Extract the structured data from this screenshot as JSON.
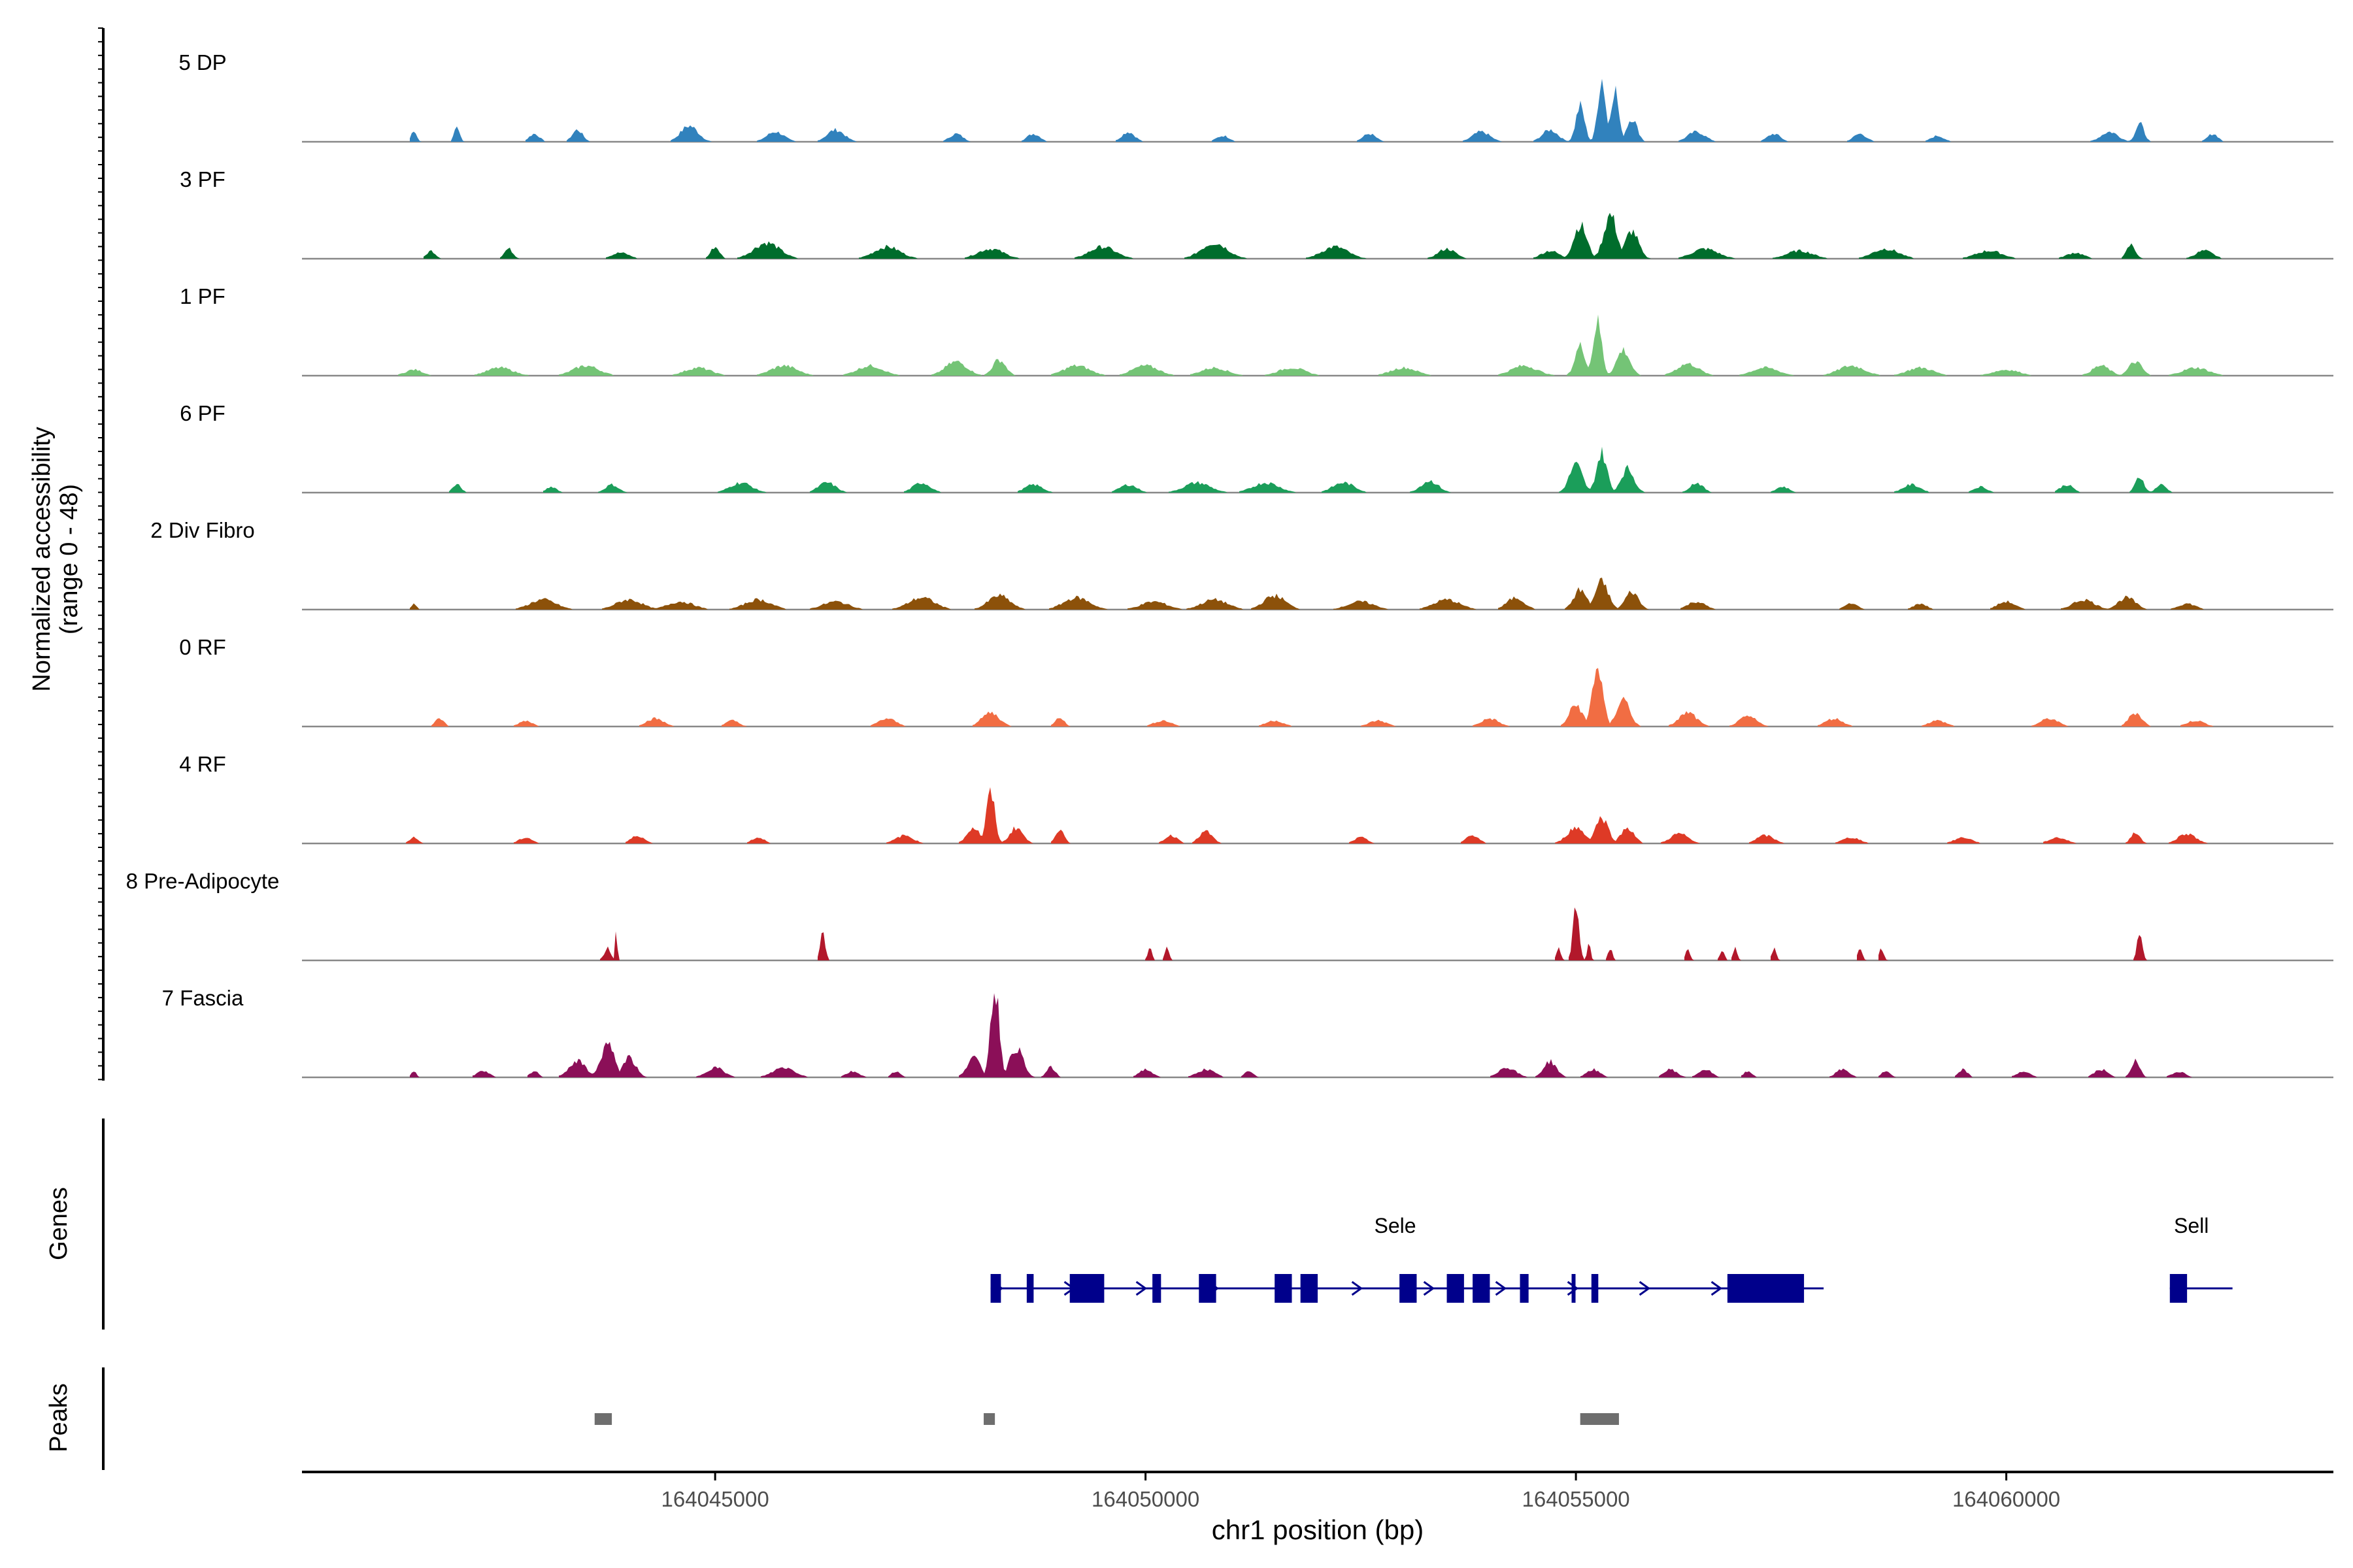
{
  "chart_data": {
    "type": "area",
    "title": "",
    "chromosome": "chr1",
    "xlabel": "chr1 position (bp)",
    "ylabel_line1": "Normalized accessibility",
    "ylabel_line2": "(range 0 - 48)",
    "xlim": [
      164040200,
      164063800
    ],
    "ylim": [
      0,
      48
    ],
    "x_ticks": [
      164045000,
      164050000,
      164055000,
      164060000
    ],
    "x_tick_labels": [
      "164045000",
      "164050000",
      "164055000",
      "164060000"
    ],
    "tracks": [
      {
        "name": "5 DP",
        "color": "#3182bd",
        "peaks": [
          [
            164041500,
            6,
            60
          ],
          [
            164042000,
            8,
            60
          ],
          [
            164042900,
            4,
            120
          ],
          [
            164043400,
            6,
            120
          ],
          [
            164044700,
            8,
            200
          ],
          [
            164045700,
            5,
            200
          ],
          [
            164046400,
            6,
            200
          ],
          [
            164047800,
            4,
            150
          ],
          [
            164048700,
            4,
            150
          ],
          [
            164049800,
            5,
            150
          ],
          [
            164050900,
            3,
            150
          ],
          [
            164052600,
            4,
            150
          ],
          [
            164053900,
            5,
            200
          ],
          [
            164054700,
            6,
            180
          ],
          [
            164055050,
            18,
            100
          ],
          [
            164055300,
            32,
            90
          ],
          [
            164055450,
            27,
            90
          ],
          [
            164055650,
            12,
            120
          ],
          [
            164056400,
            5,
            200
          ],
          [
            164057300,
            4,
            150
          ],
          [
            164058300,
            4,
            150
          ],
          [
            164059200,
            3,
            150
          ],
          [
            164061200,
            5,
            200
          ],
          [
            164061550,
            9,
            100
          ],
          [
            164062400,
            4,
            120
          ]
        ]
      },
      {
        "name": "3 PF",
        "color": "#006d2c",
        "peaks": [
          [
            164041700,
            4,
            100
          ],
          [
            164042600,
            5,
            100
          ],
          [
            164043900,
            3,
            200
          ],
          [
            164045000,
            6,
            100
          ],
          [
            164045600,
            8,
            300
          ],
          [
            164047000,
            6,
            300
          ],
          [
            164048200,
            5,
            300
          ],
          [
            164049500,
            6,
            300
          ],
          [
            164050800,
            8,
            300
          ],
          [
            164052200,
            6,
            300
          ],
          [
            164053500,
            5,
            200
          ],
          [
            164054700,
            4,
            200
          ],
          [
            164055050,
            17,
            150
          ],
          [
            164055400,
            22,
            150
          ],
          [
            164055650,
            14,
            150
          ],
          [
            164056500,
            5,
            300
          ],
          [
            164057600,
            4,
            300
          ],
          [
            164058600,
            5,
            300
          ],
          [
            164059800,
            4,
            300
          ],
          [
            164060800,
            3,
            200
          ],
          [
            164061450,
            7,
            100
          ],
          [
            164062300,
            4,
            200
          ]
        ]
      },
      {
        "name": "1 PF",
        "color": "#74c476",
        "peaks": [
          [
            164041500,
            3,
            200
          ],
          [
            164042500,
            4,
            300
          ],
          [
            164043500,
            5,
            300
          ],
          [
            164044800,
            4,
            300
          ],
          [
            164045800,
            5,
            300
          ],
          [
            164046800,
            5,
            300
          ],
          [
            164047800,
            7,
            250
          ],
          [
            164048300,
            8,
            150
          ],
          [
            164049200,
            5,
            300
          ],
          [
            164050000,
            5,
            300
          ],
          [
            164050800,
            4,
            300
          ],
          [
            164051700,
            4,
            300
          ],
          [
            164053000,
            4,
            300
          ],
          [
            164054400,
            5,
            300
          ],
          [
            164055050,
            15,
            120
          ],
          [
            164055250,
            27,
            100
          ],
          [
            164055550,
            13,
            150
          ],
          [
            164056300,
            6,
            250
          ],
          [
            164057200,
            4,
            300
          ],
          [
            164058200,
            5,
            300
          ],
          [
            164059000,
            4,
            300
          ],
          [
            164060000,
            3,
            300
          ],
          [
            164061100,
            5,
            200
          ],
          [
            164061500,
            7,
            150
          ],
          [
            164062200,
            4,
            300
          ]
        ]
      },
      {
        "name": "6 PF",
        "color": "#1b9e5a",
        "peaks": [
          [
            164042000,
            4,
            100
          ],
          [
            164043100,
            3,
            120
          ],
          [
            164043800,
            4,
            150
          ],
          [
            164045300,
            5,
            250
          ],
          [
            164046300,
            5,
            200
          ],
          [
            164047400,
            5,
            200
          ],
          [
            164048700,
            4,
            200
          ],
          [
            164049800,
            4,
            200
          ],
          [
            164050600,
            5,
            300
          ],
          [
            164051400,
            5,
            300
          ],
          [
            164052300,
            5,
            250
          ],
          [
            164053300,
            6,
            200
          ],
          [
            164055000,
            14,
            150
          ],
          [
            164055300,
            20,
            120
          ],
          [
            164055600,
            12,
            150
          ],
          [
            164056400,
            5,
            150
          ],
          [
            164057400,
            3,
            150
          ],
          [
            164058900,
            4,
            200
          ],
          [
            164059700,
            3,
            150
          ],
          [
            164060700,
            4,
            150
          ],
          [
            164061550,
            8,
            100
          ],
          [
            164061800,
            4,
            120
          ]
        ]
      },
      {
        "name": "2 Div Fibro",
        "color": "#8c510a",
        "peaks": [
          [
            164041500,
            3,
            60
          ],
          [
            164043000,
            5,
            300
          ],
          [
            164044000,
            5,
            300
          ],
          [
            164044600,
            4,
            300
          ],
          [
            164045500,
            5,
            300
          ],
          [
            164046400,
            4,
            300
          ],
          [
            164047400,
            6,
            300
          ],
          [
            164048300,
            7,
            250
          ],
          [
            164049200,
            6,
            300
          ],
          [
            164050100,
            4,
            300
          ],
          [
            164050800,
            5,
            300
          ],
          [
            164051500,
            7,
            250
          ],
          [
            164052500,
            4,
            300
          ],
          [
            164053500,
            5,
            300
          ],
          [
            164054300,
            6,
            200
          ],
          [
            164055050,
            10,
            150
          ],
          [
            164055300,
            14,
            150
          ],
          [
            164055650,
            9,
            150
          ],
          [
            164056400,
            4,
            200
          ],
          [
            164058200,
            3,
            150
          ],
          [
            164059000,
            3,
            150
          ],
          [
            164060000,
            4,
            200
          ],
          [
            164060900,
            5,
            250
          ],
          [
            164061400,
            6,
            200
          ],
          [
            164062100,
            3,
            200
          ]
        ]
      },
      {
        "name": "0 RF",
        "color": "#f16d43",
        "peaks": [
          [
            164041800,
            4,
            100
          ],
          [
            164042800,
            3,
            150
          ],
          [
            164044300,
            4,
            200
          ],
          [
            164045200,
            3,
            150
          ],
          [
            164047000,
            4,
            200
          ],
          [
            164048200,
            7,
            200
          ],
          [
            164049000,
            5,
            100
          ],
          [
            164050200,
            3,
            200
          ],
          [
            164051500,
            3,
            200
          ],
          [
            164052700,
            3,
            200
          ],
          [
            164054000,
            4,
            200
          ],
          [
            164055000,
            11,
            150
          ],
          [
            164055250,
            30,
            120
          ],
          [
            164055550,
            14,
            150
          ],
          [
            164056300,
            7,
            200
          ],
          [
            164057000,
            5,
            200
          ],
          [
            164058000,
            4,
            200
          ],
          [
            164059200,
            3,
            200
          ],
          [
            164060500,
            4,
            200
          ],
          [
            164061500,
            7,
            150
          ],
          [
            164062200,
            3,
            200
          ]
        ]
      },
      {
        "name": "4 RF",
        "color": "#de3a26",
        "peaks": [
          [
            164041500,
            3,
            100
          ],
          [
            164042800,
            3,
            150
          ],
          [
            164044100,
            4,
            150
          ],
          [
            164045500,
            3,
            150
          ],
          [
            164047200,
            4,
            200
          ],
          [
            164048000,
            8,
            150
          ],
          [
            164048200,
            25,
            100
          ],
          [
            164048500,
            8,
            150
          ],
          [
            164049000,
            7,
            100
          ],
          [
            164050300,
            4,
            150
          ],
          [
            164050700,
            6,
            150
          ],
          [
            164052500,
            3,
            150
          ],
          [
            164053800,
            4,
            150
          ],
          [
            164055000,
            8,
            200
          ],
          [
            164055300,
            13,
            150
          ],
          [
            164055600,
            8,
            150
          ],
          [
            164056200,
            5,
            200
          ],
          [
            164057200,
            4,
            200
          ],
          [
            164058200,
            3,
            200
          ],
          [
            164059500,
            3,
            200
          ],
          [
            164060600,
            3,
            200
          ],
          [
            164061500,
            6,
            100
          ],
          [
            164062100,
            5,
            200
          ]
        ]
      },
      {
        "name": "8 Pre-Adipocyte",
        "color": "#b2182b",
        "peaks": [
          [
            164043750,
            6,
            80
          ],
          [
            164043850,
            14,
            25
          ],
          [
            164046250,
            14,
            60
          ],
          [
            164050050,
            6,
            50
          ],
          [
            164050250,
            6,
            50
          ],
          [
            164054800,
            6,
            50
          ],
          [
            164055000,
            26,
            70
          ],
          [
            164055150,
            8,
            40
          ],
          [
            164055400,
            6,
            50
          ],
          [
            164056300,
            6,
            50
          ],
          [
            164056700,
            6,
            50
          ],
          [
            164056850,
            6,
            50
          ],
          [
            164057300,
            6,
            50
          ],
          [
            164058300,
            6,
            50
          ],
          [
            164058550,
            6,
            50
          ],
          [
            164061550,
            14,
            60
          ]
        ]
      },
      {
        "name": "7 Fascia",
        "color": "#8b0f58",
        "peaks": [
          [
            164041500,
            3,
            60
          ],
          [
            164042300,
            3,
            150
          ],
          [
            164042900,
            3,
            100
          ],
          [
            164043400,
            8,
            200
          ],
          [
            164043750,
            17,
            150
          ],
          [
            164044000,
            10,
            150
          ],
          [
            164045000,
            5,
            200
          ],
          [
            164045800,
            5,
            250
          ],
          [
            164046600,
            3,
            150
          ],
          [
            164047100,
            3,
            100
          ],
          [
            164048000,
            10,
            150
          ],
          [
            164048250,
            46,
            100
          ],
          [
            164048500,
            15,
            150
          ],
          [
            164048900,
            5,
            100
          ],
          [
            164050000,
            4,
            150
          ],
          [
            164050700,
            4,
            200
          ],
          [
            164051200,
            3,
            100
          ],
          [
            164054200,
            5,
            200
          ],
          [
            164054700,
            8,
            150
          ],
          [
            164055200,
            4,
            150
          ],
          [
            164056100,
            4,
            150
          ],
          [
            164056500,
            4,
            150
          ],
          [
            164057000,
            3,
            100
          ],
          [
            164058100,
            4,
            150
          ],
          [
            164058600,
            3,
            100
          ],
          [
            164059500,
            4,
            100
          ],
          [
            164060200,
            3,
            150
          ],
          [
            164061100,
            4,
            150
          ],
          [
            164061500,
            8,
            100
          ],
          [
            164062000,
            3,
            150
          ]
        ]
      }
    ],
    "genes_label": "Genes",
    "genes": [
      {
        "name": "Sele",
        "start": 164048200,
        "end": 164057650,
        "strand": "+",
        "exons": [
          [
            164048200,
            164048320
          ],
          [
            164048620,
            164048700
          ],
          [
            164049120,
            164049520
          ],
          [
            164050080,
            164050180
          ],
          [
            164050620,
            164050820
          ],
          [
            164051500,
            164051700
          ],
          [
            164051800,
            164052000
          ],
          [
            164052950,
            164053150
          ],
          [
            164053500,
            164053700
          ],
          [
            164053800,
            164054000
          ],
          [
            164054350,
            164054450
          ],
          [
            164054950,
            164054980
          ],
          [
            164055180,
            164055260
          ],
          [
            164056760,
            164057650
          ]
        ]
      },
      {
        "name": "Sell",
        "start": 164061900,
        "end": 164062400,
        "strand": "+",
        "exons": [
          [
            164061900,
            164062100
          ]
        ]
      }
    ],
    "peaks_label": "Peaks",
    "peak_regions": [
      [
        164043600,
        164043800
      ],
      [
        164048120,
        164048250
      ],
      [
        164055050,
        164055500
      ]
    ]
  }
}
